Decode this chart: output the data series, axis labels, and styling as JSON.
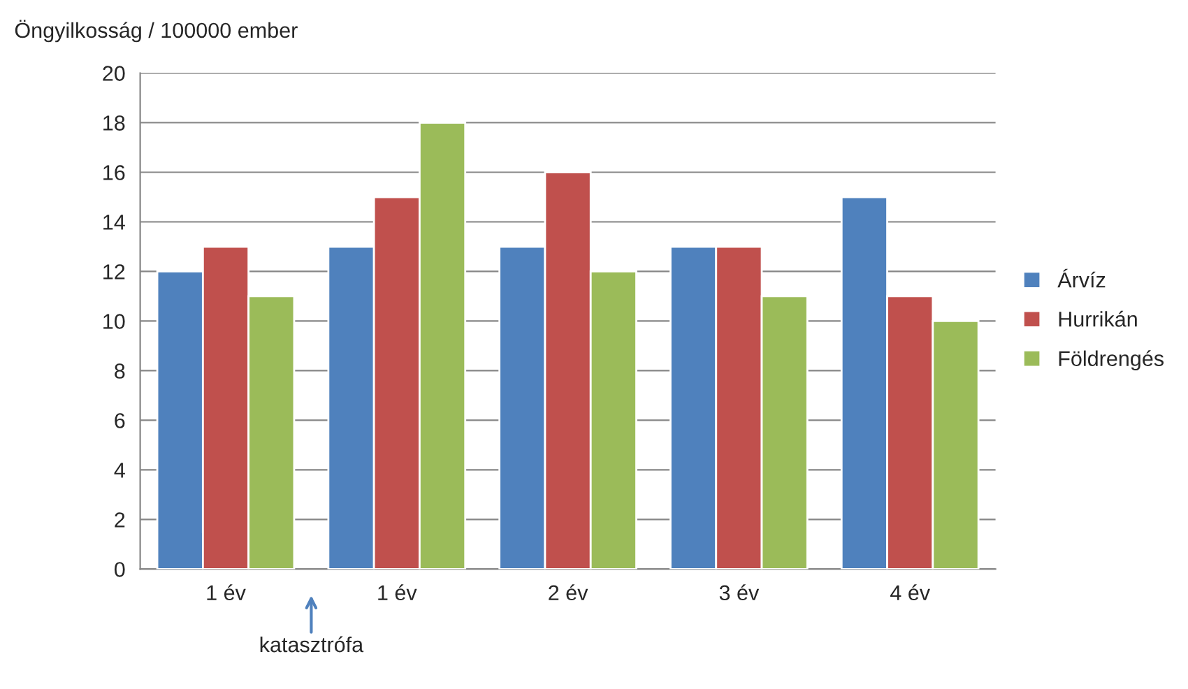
{
  "chart_data": {
    "type": "bar",
    "ylabel": "Öngyilkosság / 100000 ember",
    "categories": [
      "1 év",
      "1 év",
      "2 év",
      "3 év",
      "4 év"
    ],
    "series": [
      {
        "name": "Árvíz",
        "color": "#4f81bd",
        "values": [
          12,
          13,
          13,
          13,
          15
        ]
      },
      {
        "name": "Hurrikán",
        "color": "#c0504d",
        "values": [
          13,
          15,
          16,
          13,
          11
        ]
      },
      {
        "name": "Földrengés",
        "color": "#9bbb59",
        "values": [
          11,
          18,
          12,
          11,
          10
        ]
      }
    ],
    "ylim": [
      0,
      20
    ],
    "yticks": [
      0,
      2,
      4,
      6,
      8,
      10,
      12,
      14,
      16,
      18,
      20
    ],
    "grid": "y",
    "legend": "right",
    "annotations": [
      "katasztrófa"
    ]
  }
}
